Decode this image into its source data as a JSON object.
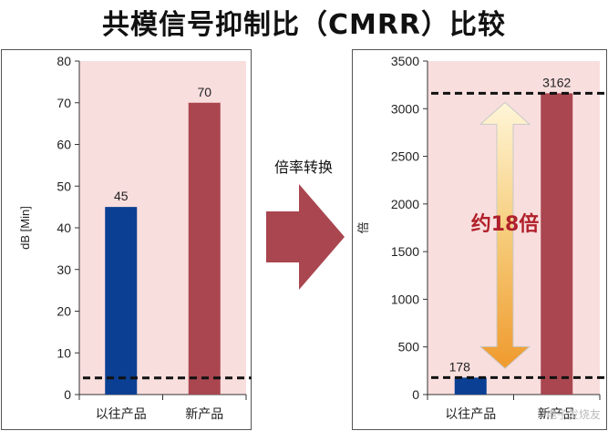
{
  "title": "共模信号抑制比（CMRR）比较",
  "conversion_label": "倍率转换",
  "chart_data": [
    {
      "type": "bar",
      "categories": [
        "以往产品",
        "新产品"
      ],
      "values": [
        45,
        70
      ],
      "data_labels": [
        "45",
        "70"
      ],
      "ylabel": "dB [Min]",
      "ylim": [
        0,
        80
      ],
      "yticks": [
        0,
        10,
        20,
        30,
        40,
        50,
        60,
        70,
        80
      ],
      "reference_line": 4,
      "colors": [
        "#0b3f93",
        "#a9464f"
      ],
      "plot_background": "#f9dede",
      "grid": false
    },
    {
      "type": "bar",
      "categories": [
        "以往产品",
        "新产品"
      ],
      "values": [
        178,
        3162
      ],
      "data_labels": [
        "178",
        "3162"
      ],
      "ylabel": "倍",
      "ylim": [
        0,
        3500
      ],
      "yticks": [
        0,
        500,
        1000,
        1500,
        2000,
        2500,
        3000,
        3500
      ],
      "reference_lines": [
        178,
        3162
      ],
      "annotation": "约18倍",
      "colors": [
        "#0b3f93",
        "#a9464f"
      ],
      "plot_background": "#f9dede",
      "grid": false
    }
  ],
  "watermark": "电子发烧友"
}
